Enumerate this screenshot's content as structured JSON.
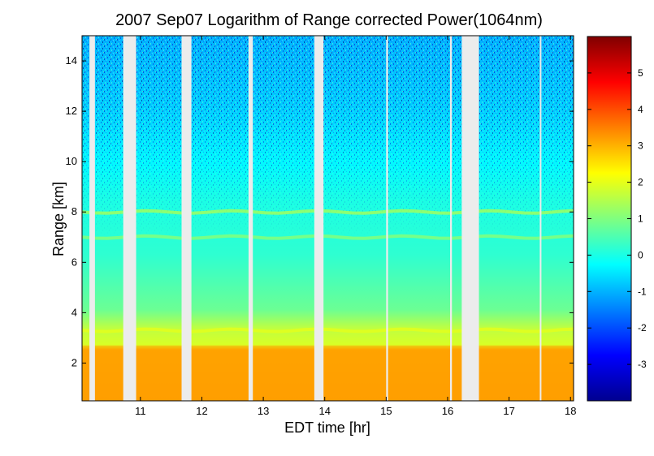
{
  "chart_data": {
    "type": "heatmap",
    "title": "2007 Sep07  Logarithm of Range corrected Power(1064nm)",
    "xlabel": "EDT time [hr]",
    "ylabel": "Range [km]",
    "xlim": [
      10.05,
      18.05
    ],
    "ylim": [
      0.5,
      15
    ],
    "x_ticks": [
      11,
      12,
      13,
      14,
      15,
      16,
      17,
      18
    ],
    "y_ticks": [
      2,
      4,
      6,
      8,
      10,
      12,
      14
    ],
    "colorbar": {
      "colormap": "jet",
      "range": [
        -4,
        6
      ],
      "ticks": [
        -3,
        -2,
        -1,
        0,
        1,
        2,
        3,
        4,
        5
      ]
    },
    "data_gaps_hr": [
      [
        10.17,
        10.26
      ],
      [
        10.72,
        10.93
      ],
      [
        11.67,
        11.83
      ],
      [
        12.76,
        12.83
      ],
      [
        13.83,
        13.98
      ],
      [
        15.0,
        15.03
      ],
      [
        16.04,
        16.07
      ],
      [
        16.23,
        16.51
      ],
      [
        17.5,
        17.52
      ]
    ],
    "layers": [
      {
        "name": "aerosol layer",
        "range_km": 8.0,
        "value": 1.4
      },
      {
        "name": "aerosol layer",
        "range_km": 7.0,
        "value": 1.1
      },
      {
        "name": "boundary layer top",
        "range_km": 3.3,
        "value": 2.0
      },
      {
        "name": "boundary layer",
        "range_km": [
          0.5,
          2.7
        ],
        "value": 3.2
      }
    ]
  }
}
